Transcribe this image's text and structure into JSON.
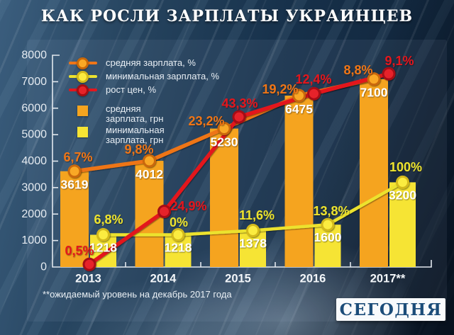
{
  "header": {
    "title": "КАК РОСЛИ ЗАРПЛАТЫ УКРАИНЦЕВ"
  },
  "footnote": "**ожидаемый уровень на декабрь 2017 года",
  "logo": {
    "text": "СЕГОДНЯ",
    "text_color": "#1b4c79",
    "bg_color": "#f8fafc"
  },
  "colors": {
    "background_base": "#16304a",
    "axis": "#e2e8ee",
    "axis_text": "#e5ebf1",
    "bar_value_text": "#ffffff",
    "year_text": "#f3f6f9",
    "legend_text": "#e9eff5",
    "title_text": "#ffffff",
    "footnote_text": "#eaf0f5"
  },
  "chart_data": {
    "type": "combo: grouped bars + lines",
    "title": "КАК РОСЛИ ЗАРПЛАТЫ УКРАИНЦЕВ",
    "categories": [
      "2013",
      "2014",
      "2015",
      "2016",
      "2017**"
    ],
    "y_axis": {
      "min": 0,
      "max": 8000,
      "step": 1000,
      "tick_labels": [
        "0",
        "1000",
        "2000",
        "3000",
        "4000",
        "5000",
        "6000",
        "7000",
        "8000"
      ]
    },
    "grid": false,
    "legend_position": "top-left",
    "series": [
      {
        "name": "средняя зарплата, %",
        "type": "line",
        "color": "#ee7518",
        "marker_fill": "#f9a825",
        "marker_stroke": "#c96708",
        "values": [
          6.7,
          9.8,
          23.2,
          19.2,
          8.8
        ],
        "labels": [
          "6,7%",
          "9,8%",
          "23,2%",
          "19,2%",
          "8,8%"
        ]
      },
      {
        "name": "минимальная зарплата, %",
        "type": "line",
        "color": "#ece22e",
        "marker_fill": "#fbec3f",
        "marker_stroke": "#d3b91c",
        "values": [
          6.8,
          0,
          11.6,
          13.8,
          100
        ],
        "labels": [
          "6,8%",
          "0%",
          "11,6%",
          "13,8%",
          "100%"
        ]
      },
      {
        "name": "рост цен, %",
        "type": "line",
        "color": "#e3171e",
        "marker_fill": "#e62329",
        "marker_stroke": "#a50d12",
        "values": [
          0.5,
          24.9,
          43.3,
          12.4,
          9.1
        ],
        "labels": [
          "0,5%",
          "24,9%",
          "43,3%",
          "12,4%",
          "9,1%"
        ]
      },
      {
        "name": "средняя зарплата, грн",
        "type": "bar",
        "color": "#f5a41f",
        "values": [
          3619,
          4012,
          5230,
          6475,
          7100
        ],
        "labels": [
          "3619",
          "4012",
          "5230",
          "6475",
          "7100"
        ]
      },
      {
        "name": "минимальная зарплата, грн",
        "type": "bar",
        "color": "#f6e434",
        "values": [
          1218,
          1218,
          1378,
          1600,
          3200
        ],
        "labels": [
          "1218",
          "1218",
          "1378",
          "1600",
          "3200"
        ]
      }
    ],
    "layout_hints": {
      "pct_lines_follow_bar_tops": true,
      "price_line_axis_equivalents": [
        100,
        2100,
        5670,
        6550,
        7300
      ]
    }
  }
}
